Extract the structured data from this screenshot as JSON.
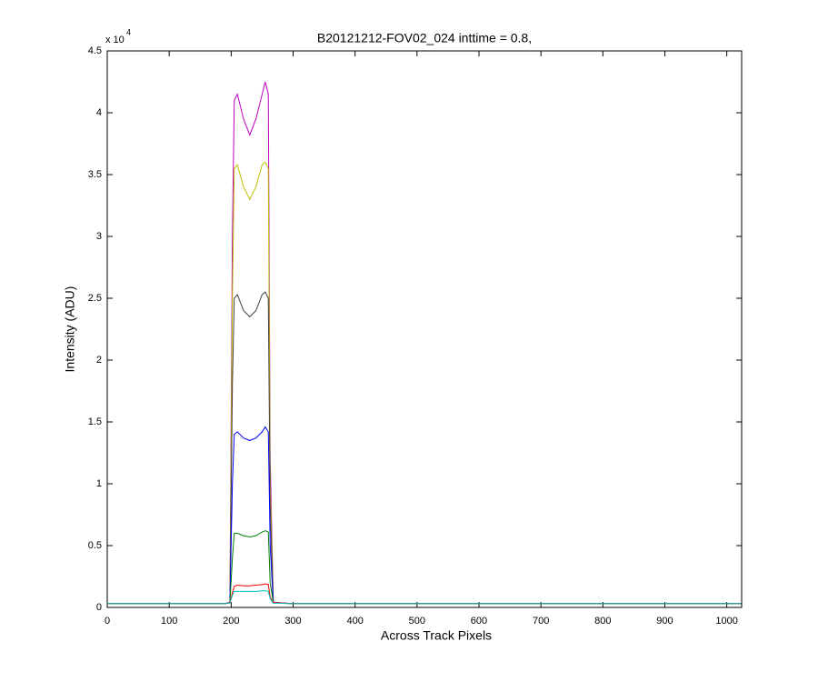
{
  "chart_data": {
    "type": "line",
    "title": "B20121212-FOV02_024 inttime = 0.8,",
    "xlabel": "Across Track Pixels",
    "ylabel": "Intensity (ADU)",
    "y_multiplier": {
      "base": "x 10",
      "exponent": "4"
    },
    "x": [
      0,
      190,
      198,
      202,
      205,
      210,
      220,
      230,
      240,
      250,
      255,
      260,
      263,
      268,
      300,
      1023
    ],
    "series": [
      {
        "color": "#bf00bf",
        "values": [
          300,
          300,
          400,
          30000,
          41000,
          41500,
          39500,
          38200,
          39500,
          41500,
          42500,
          41500,
          12000,
          400,
          300,
          300
        ]
      },
      {
        "color": "#bfbf00",
        "values": [
          300,
          300,
          400,
          25000,
          35500,
          35800,
          34000,
          33000,
          34000,
          35800,
          36000,
          35500,
          10000,
          400,
          300,
          300
        ]
      },
      {
        "color": "#404040",
        "values": [
          300,
          300,
          400,
          18000,
          25000,
          25300,
          24000,
          23500,
          24000,
          25300,
          25500,
          25000,
          8000,
          400,
          300,
          300
        ]
      },
      {
        "color": "#0000ff",
        "values": [
          300,
          300,
          400,
          10000,
          14000,
          14200,
          13700,
          13500,
          13700,
          14200,
          14600,
          14200,
          5000,
          400,
          300,
          300
        ]
      },
      {
        "color": "#008000",
        "values": [
          300,
          300,
          400,
          4000,
          6000,
          6000,
          5800,
          5700,
          5800,
          6100,
          6200,
          6100,
          2000,
          400,
          300,
          300
        ]
      },
      {
        "color": "#ff0000",
        "values": [
          300,
          300,
          400,
          1200,
          1700,
          1800,
          1750,
          1750,
          1800,
          1850,
          1900,
          1850,
          800,
          400,
          300,
          300
        ]
      },
      {
        "color": "#00bfbf",
        "values": [
          300,
          300,
          350,
          1000,
          1300,
          1300,
          1300,
          1300,
          1300,
          1350,
          1350,
          1300,
          700,
          350,
          300,
          300
        ]
      }
    ],
    "xlim": [
      0,
      1024
    ],
    "ylim": [
      0,
      45000
    ],
    "xticks": [
      0,
      100,
      200,
      300,
      400,
      500,
      600,
      700,
      800,
      900,
      1000
    ],
    "yticks": [
      0,
      {
        "value": 5000,
        "label": "0.5"
      },
      {
        "value": 10000,
        "label": "1"
      },
      {
        "value": 15000,
        "label": "1.5"
      },
      {
        "value": 20000,
        "label": "2"
      },
      {
        "value": 25000,
        "label": "2.5"
      },
      {
        "value": 30000,
        "label": "3"
      },
      {
        "value": 35000,
        "label": "3.5"
      },
      {
        "value": 40000,
        "label": "4"
      },
      {
        "value": 45000,
        "label": "4.5"
      }
    ]
  }
}
